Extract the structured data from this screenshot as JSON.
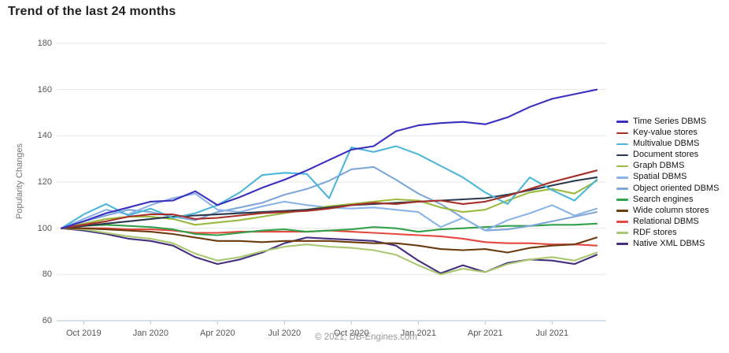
{
  "title": "Trend of the last 24 months",
  "footer": "© 2021, DB-Engines.com",
  "y_axis": {
    "label": "Popularity Changes",
    "ticks": [
      180,
      160,
      140,
      120,
      100,
      80,
      60
    ]
  },
  "x_axis": {
    "tick_labels": [
      "Oct 2019",
      "Jan 2020",
      "Apr 2020",
      "Jul 2020",
      "Oct 2020",
      "Jan 2021",
      "Apr 2021",
      "Jul 2021"
    ],
    "tick_indices": [
      1,
      4,
      7,
      10,
      13,
      16,
      19,
      22
    ]
  },
  "colors": {
    "gridline": "#e6e6e6",
    "axis_line": "#bfd0da",
    "tick_mark": "#bfd0da"
  },
  "chart_data": {
    "type": "line",
    "title": "Trend of the last 24 months",
    "xlabel": "",
    "ylabel": "Popularity Changes",
    "ylim": [
      60,
      180
    ],
    "y_ticks": [
      180,
      160,
      140,
      120,
      100,
      80,
      60
    ],
    "x": [
      "Sep 2019",
      "Oct 2019",
      "Nov 2019",
      "Dec 2019",
      "Jan 2020",
      "Feb 2020",
      "Mar 2020",
      "Apr 2020",
      "May 2020",
      "Jun 2020",
      "Jul 2020",
      "Aug 2020",
      "Sep 2020",
      "Oct 2020",
      "Nov 2020",
      "Dec 2020",
      "Jan 2021",
      "Feb 2021",
      "Mar 2021",
      "Apr 2021",
      "May 2021",
      "Jun 2021",
      "Jul 2021",
      "Aug 2021",
      "Sep 2021"
    ],
    "x_tick_labels": [
      "Oct 2019",
      "Jan 2020",
      "Apr 2020",
      "Jul 2020",
      "Oct 2020",
      "Jan 2021",
      "Apr 2021",
      "Jul 2021"
    ],
    "grid": true,
    "legend_position": "right",
    "series": [
      {
        "name": "Time Series DBMS",
        "color": "#3b2fc0",
        "values": [
          100,
          103,
          106.5,
          109,
          111.5,
          112,
          116,
          110,
          113.5,
          117.5,
          121,
          125,
          129.5,
          134,
          135.5,
          142,
          144.5,
          145.5,
          146,
          145,
          148,
          152.5,
          156,
          158,
          160
        ]
      },
      {
        "name": "Key-value stores",
        "color": "#a5302a",
        "values": [
          100,
          101.5,
          103,
          105,
          106,
          106,
          104,
          104.5,
          105.5,
          106.5,
          107,
          107.5,
          108.5,
          110,
          111,
          110.5,
          111.5,
          112,
          110.5,
          111.5,
          114,
          117,
          120,
          122.5,
          125
        ]
      },
      {
        "name": "Multivalue DBMS",
        "color": "#4cb6d8",
        "values": [
          100,
          106,
          110.5,
          105.5,
          108.5,
          104.5,
          106.5,
          110,
          115.5,
          123,
          124,
          123.5,
          113,
          135,
          133,
          135.5,
          132,
          127,
          122,
          115.5,
          110.5,
          122,
          116.5,
          112,
          121
        ]
      },
      {
        "name": "Document stores",
        "color": "#2a3a4c",
        "values": [
          100,
          101,
          102,
          103,
          104,
          105,
          105.5,
          106,
          106.5,
          107,
          107.5,
          108,
          109,
          110,
          110.5,
          111,
          111.5,
          112,
          112.5,
          113,
          114.5,
          116.5,
          118.5,
          120.5,
          122
        ]
      },
      {
        "name": "Graph DBMS",
        "color": "#9cba40",
        "values": [
          100,
          102,
          104,
          105,
          105,
          104,
          101.5,
          102.5,
          103.5,
          105,
          106.5,
          108,
          109.5,
          110.5,
          111.5,
          112.5,
          112,
          109,
          107,
          108,
          112,
          115.5,
          117,
          115,
          120.5
        ]
      },
      {
        "name": "Spatial DBMS",
        "color": "#8ab4e8",
        "values": [
          100,
          104,
          108,
          106,
          110,
          113,
          115,
          108,
          107,
          109.5,
          111.5,
          110,
          109,
          108.5,
          109,
          108,
          107,
          100.5,
          104.5,
          99,
          103.5,
          106.5,
          110,
          105.5,
          108.5
        ]
      },
      {
        "name": "Object oriented DBMS",
        "color": "#7fa6d8",
        "values": [
          100,
          103,
          105.5,
          108,
          107,
          105,
          103.5,
          107,
          109,
          111,
          114.5,
          117,
          120.5,
          125.5,
          126.5,
          121,
          115,
          110.5,
          104.5,
          99,
          99.5,
          101,
          103,
          105,
          107
        ]
      },
      {
        "name": "Search engines",
        "color": "#33a04a",
        "values": [
          100,
          101,
          101.5,
          101,
          100.5,
          99.5,
          97.5,
          97,
          98,
          99,
          99.5,
          98.5,
          99,
          99.5,
          100.5,
          100,
          98.5,
          99.5,
          100,
          100.5,
          101,
          101,
          101.5,
          101.5,
          102
        ]
      },
      {
        "name": "Wide column stores",
        "color": "#6b3c10",
        "values": [
          100,
          100,
          99.5,
          99,
          98.5,
          97.5,
          96,
          94.5,
          94.5,
          94,
          94.5,
          94.5,
          94.5,
          94,
          93.5,
          93.5,
          92.5,
          91,
          90.5,
          91,
          89.5,
          91.5,
          92.5,
          93,
          96
        ]
      },
      {
        "name": "Relational DBMS",
        "color": "#e4483e",
        "values": [
          100,
          100,
          100,
          99.5,
          99.5,
          99,
          98,
          98,
          98.5,
          98.5,
          98.5,
          98.5,
          99,
          98.5,
          98,
          97.5,
          97,
          96.5,
          95.5,
          94,
          93.5,
          93.5,
          93,
          93,
          92.5
        ]
      },
      {
        "name": "RDF stores",
        "color": "#aac871",
        "values": [
          100,
          99.5,
          98,
          96.5,
          95.5,
          93.5,
          89,
          86,
          87.5,
          90,
          92,
          93,
          92,
          91.5,
          90.5,
          88.5,
          84,
          80,
          82.5,
          81,
          84.5,
          86.5,
          87.5,
          86,
          89.5
        ]
      },
      {
        "name": "Native XML DBMS",
        "color": "#46307e",
        "values": [
          100,
          99,
          97.5,
          95.5,
          94.5,
          92.5,
          87.5,
          84.5,
          86.5,
          89.5,
          93.5,
          96,
          95.5,
          95,
          94.5,
          92.5,
          86,
          80.5,
          84,
          81,
          85,
          86.5,
          86,
          84.5,
          88.5
        ]
      }
    ]
  }
}
